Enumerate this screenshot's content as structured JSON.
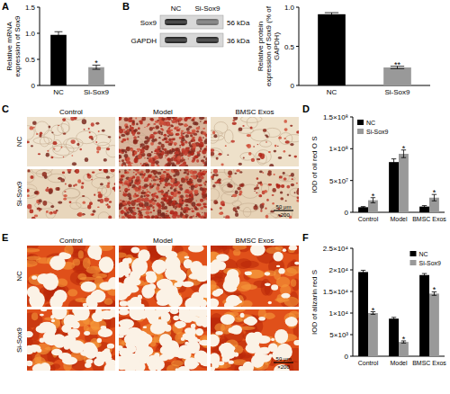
{
  "chart_data": [
    {
      "type": "bar",
      "ylabel": "Relative mRNA expression of Sox9",
      "categories": [
        "NC",
        "Si-Sox9"
      ],
      "values": [
        0.97,
        0.35
      ],
      "errors": [
        0.06,
        0.04
      ],
      "annotations": [
        null,
        "*"
      ],
      "colors": [
        "#000000",
        "#999999"
      ],
      "ylim": [
        0,
        1.5
      ],
      "yticks": [
        0,
        0.5,
        {
          "value": 1,
          "label": "1.0"
        },
        1.5
      ]
    },
    {
      "type": "bar",
      "ylabel": "Relative protein expression of Sox9 (% of GAPDH)",
      "categories": [
        "NC",
        "Si-Sox9"
      ],
      "values": [
        0.91,
        0.23
      ],
      "errors": [
        0.02,
        0.015
      ],
      "annotations": [
        null,
        "**"
      ],
      "colors": [
        "#000000",
        "#999999"
      ],
      "ylim": [
        0,
        1
      ],
      "yticks": [
        0,
        0.5,
        {
          "value": 1,
          "label": "1.0"
        }
      ]
    },
    {
      "type": "bar",
      "ylabel": "IOD of oil red O S",
      "categories": [
        "Control",
        "Model",
        "BMSC Exos"
      ],
      "series": [
        {
          "name": "NC",
          "color": "#000000",
          "values": [
            8000000,
            79000000,
            9000000
          ],
          "errors": [
            1000000,
            5000000,
            1500000
          ]
        },
        {
          "name": "Si-Sox9",
          "color": "#999999",
          "values": [
            19000000,
            92000000,
            23000000
          ],
          "errors": [
            4000000,
            6000000,
            5000000
          ],
          "annotations": [
            "*",
            "*",
            "*"
          ]
        }
      ],
      "legend": "upper left",
      "ylim": [
        0,
        150000000
      ],
      "yticks": [
        0,
        {
          "value": 50000000,
          "label": "5×10⁷"
        },
        {
          "value": 100000000,
          "label": "1×10⁸"
        },
        {
          "value": 150000000,
          "label": "1.5×10⁸"
        }
      ]
    },
    {
      "type": "bar",
      "ylabel": "IOD of alizarin red S",
      "categories": [
        "Control",
        "Model",
        "BMSC Exos"
      ],
      "series": [
        {
          "name": "NC",
          "color": "#000000",
          "values": [
            19500,
            8700,
            18800
          ],
          "errors": [
            400,
            300,
            350
          ]
        },
        {
          "name": "Si-Sox9",
          "color": "#999999",
          "values": [
            10000,
            3300,
            14500
          ],
          "errors": [
            300,
            250,
            400
          ],
          "annotations": [
            "*",
            "*",
            "*"
          ]
        }
      ],
      "legend": "upper right",
      "ylim": [
        0,
        25000
      ],
      "yticks": [
        0,
        {
          "value": 5000,
          "label": "5×10³"
        },
        {
          "value": 10000,
          "label": "1×10⁴"
        },
        {
          "value": 15000,
          "label": "1.5×10⁴"
        },
        {
          "value": 20000,
          "label": "2×10⁴"
        },
        {
          "value": 25000,
          "label": "2.5×10⁴"
        }
      ]
    }
  ],
  "figure": {
    "panel_labels": [
      "A",
      "B",
      "C",
      "D",
      "E",
      "F"
    ],
    "blot": {
      "lanes": [
        "NC",
        "Si-Sox9"
      ],
      "bands": [
        {
          "label": "Sox9",
          "size": "56 kDa"
        },
        {
          "label": "GAPDH",
          "size": "36 kDa"
        }
      ]
    },
    "stains": [
      {
        "columns": [
          "Control",
          "Model",
          "BMSC Exos"
        ],
        "rows": [
          "NC",
          "Si-Sox9"
        ],
        "scale_bar": "50 μm",
        "magnification": "×200"
      },
      {
        "columns": [
          "Control",
          "Model",
          "BMSC Exos"
        ],
        "rows": [
          "NC",
          "Si-Sox9"
        ],
        "scale_bar": "50 μm",
        "magnification": "×200"
      }
    ]
  }
}
